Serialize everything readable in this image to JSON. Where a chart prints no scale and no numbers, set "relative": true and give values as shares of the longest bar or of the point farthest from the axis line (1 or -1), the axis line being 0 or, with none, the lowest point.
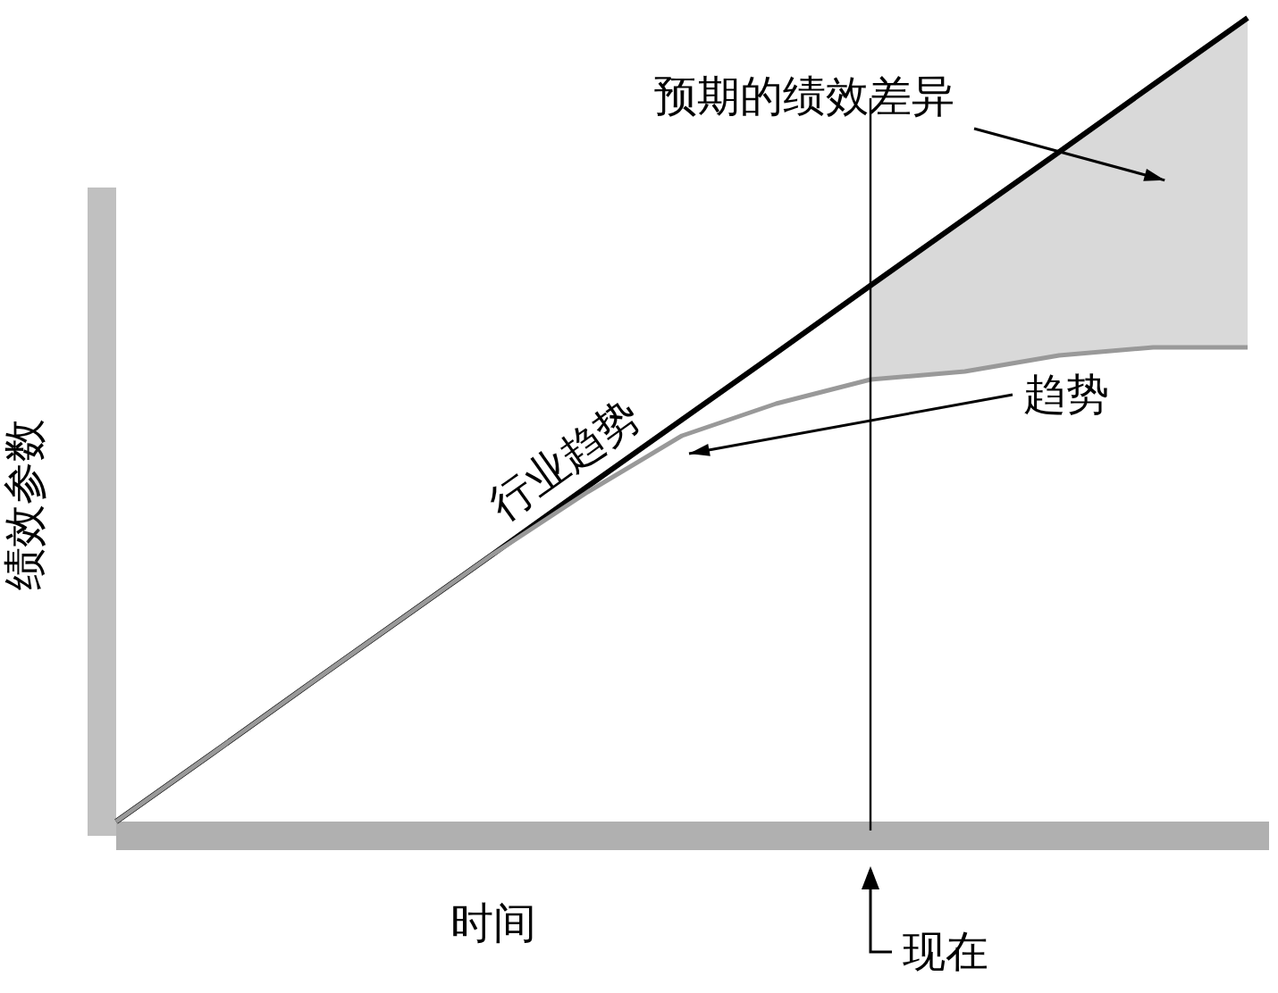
{
  "chart_data": {
    "type": "line",
    "relative": true,
    "xlabel": "时间",
    "ylabel": "绩效参数",
    "categories": [
      null,
      null,
      null,
      null,
      null,
      null,
      null,
      null,
      null,
      null,
      null,
      null,
      null
    ],
    "line_style": "solid",
    "series": [
      {
        "name": "行业趋势",
        "color": "#000000",
        "values": [
          0,
          0.083,
          0.167,
          0.25,
          0.333,
          0.417,
          0.5,
          0.583,
          0.667,
          0.75,
          0.833,
          0.917,
          1
        ]
      },
      {
        "name": "趋势",
        "color": "#999999",
        "values": [
          0,
          0.083,
          0.167,
          0.25,
          0.333,
          0.41,
          0.48,
          0.52,
          0.55,
          0.56,
          0.58,
          0.59,
          0.59
        ],
        "lower": [
          null,
          null,
          null,
          null,
          null,
          null,
          null,
          null,
          0.55,
          0.56,
          0.58,
          0.59,
          0.59
        ],
        "upper": [
          null,
          null,
          null,
          null,
          null,
          null,
          null,
          null,
          0.667,
          0.75,
          0.833,
          0.917,
          1
        ]
      }
    ],
    "annotations": [
      "预期的绩效差异",
      "现在"
    ]
  }
}
